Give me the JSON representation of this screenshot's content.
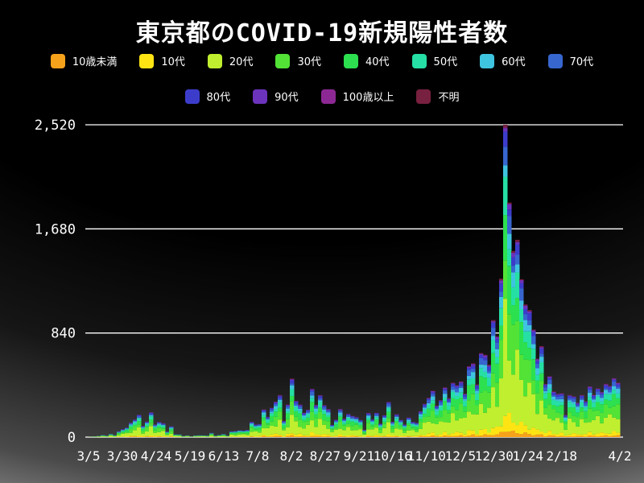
{
  "chart_data": {
    "type": "bar",
    "stacked": true,
    "title": "東京都のCOVID-19新規陽性者数",
    "y_max": 2520,
    "y_ticks": [
      {
        "v": 0,
        "label": "0"
      },
      {
        "v": 840,
        "label": "840"
      },
      {
        "v": 1680,
        "label": "1,680"
      },
      {
        "v": 2520,
        "label": "2,520"
      }
    ],
    "x_tick_labels": [
      {
        "text": "3/5",
        "day": 0
      },
      {
        "text": "3/30",
        "day": 25
      },
      {
        "text": "4/24",
        "day": 50
      },
      {
        "text": "5/19",
        "day": 75
      },
      {
        "text": "6/13",
        "day": 100
      },
      {
        "text": "7/8",
        "day": 125
      },
      {
        "text": "8/2",
        "day": 150
      },
      {
        "text": "8/27",
        "day": 175
      },
      {
        "text": "9/21",
        "day": 200
      },
      {
        "text": "10/16",
        "day": 225
      },
      {
        "text": "11/10",
        "day": 250
      },
      {
        "text": "12/5",
        "day": 275
      },
      {
        "text": "12/30",
        "day": 300
      },
      {
        "text": "1/24",
        "day": 325
      },
      {
        "text": "2/18",
        "day": 350
      },
      {
        "text": "4/2",
        "day": 393
      }
    ],
    "total_days": 393,
    "sample_step_days": 3,
    "age_groups": [
      {
        "label": "10歳未満",
        "color": "#f7a21b",
        "share": 0.025
      },
      {
        "label": "10代",
        "color": "#ffe414",
        "share": 0.055
      },
      {
        "label": "20代",
        "color": "#c0ef2f",
        "share": 0.295
      },
      {
        "label": "30代",
        "color": "#52e336",
        "share": 0.195
      },
      {
        "label": "40代",
        "color": "#2ce04f",
        "share": 0.145
      },
      {
        "label": "50代",
        "color": "#25dfa4",
        "share": 0.1
      },
      {
        "label": "60代",
        "color": "#3fc4e0",
        "share": 0.06
      },
      {
        "label": "70代",
        "color": "#3766cf",
        "share": 0.055
      },
      {
        "label": "80代",
        "color": "#3c3ccb",
        "share": 0.042
      },
      {
        "label": "90代",
        "color": "#6c33bc",
        "share": 0.018
      },
      {
        "label": "100歳以上",
        "color": "#8c2894",
        "share": 0.002
      },
      {
        "label": "不明",
        "color": "#78203f",
        "share": 0.008
      }
    ],
    "legend_row_break": 8,
    "totals": [
      3,
      6,
      10,
      17,
      12,
      26,
      17,
      47,
      63,
      78,
      117,
      143,
      181,
      91,
      127,
      201,
      102,
      123,
      112,
      46,
      87,
      23,
      22,
      9,
      14,
      5,
      14,
      15,
      15,
      13,
      34,
      12,
      18,
      25,
      13,
      47,
      48,
      55,
      54,
      58,
      124,
      102,
      106,
      224,
      165,
      237,
      286,
      339,
      131,
      263,
      472,
      292,
      263,
      197,
      222,
      389,
      260,
      339,
      258,
      226,
      100,
      141,
      226,
      149,
      187,
      171,
      163,
      139,
      59,
      195,
      144,
      196,
      108,
      177,
      284,
      124,
      185,
      139,
      102,
      158,
      124,
      116,
      209,
      269,
      317,
      374,
      255,
      298,
      401,
      314,
      439,
      418,
      449,
      351,
      572,
      595,
      425,
      678,
      664,
      584,
      944,
      814,
      1278,
      2520,
      1892,
      1502,
      1592,
      1274,
      1070,
      1026,
      868,
      633,
      734,
      429,
      491,
      369,
      350,
      353,
      178,
      340,
      329,
      278,
      340,
      290,
      409,
      342,
      394,
      364,
      430,
      414,
      475,
      440
    ]
  }
}
